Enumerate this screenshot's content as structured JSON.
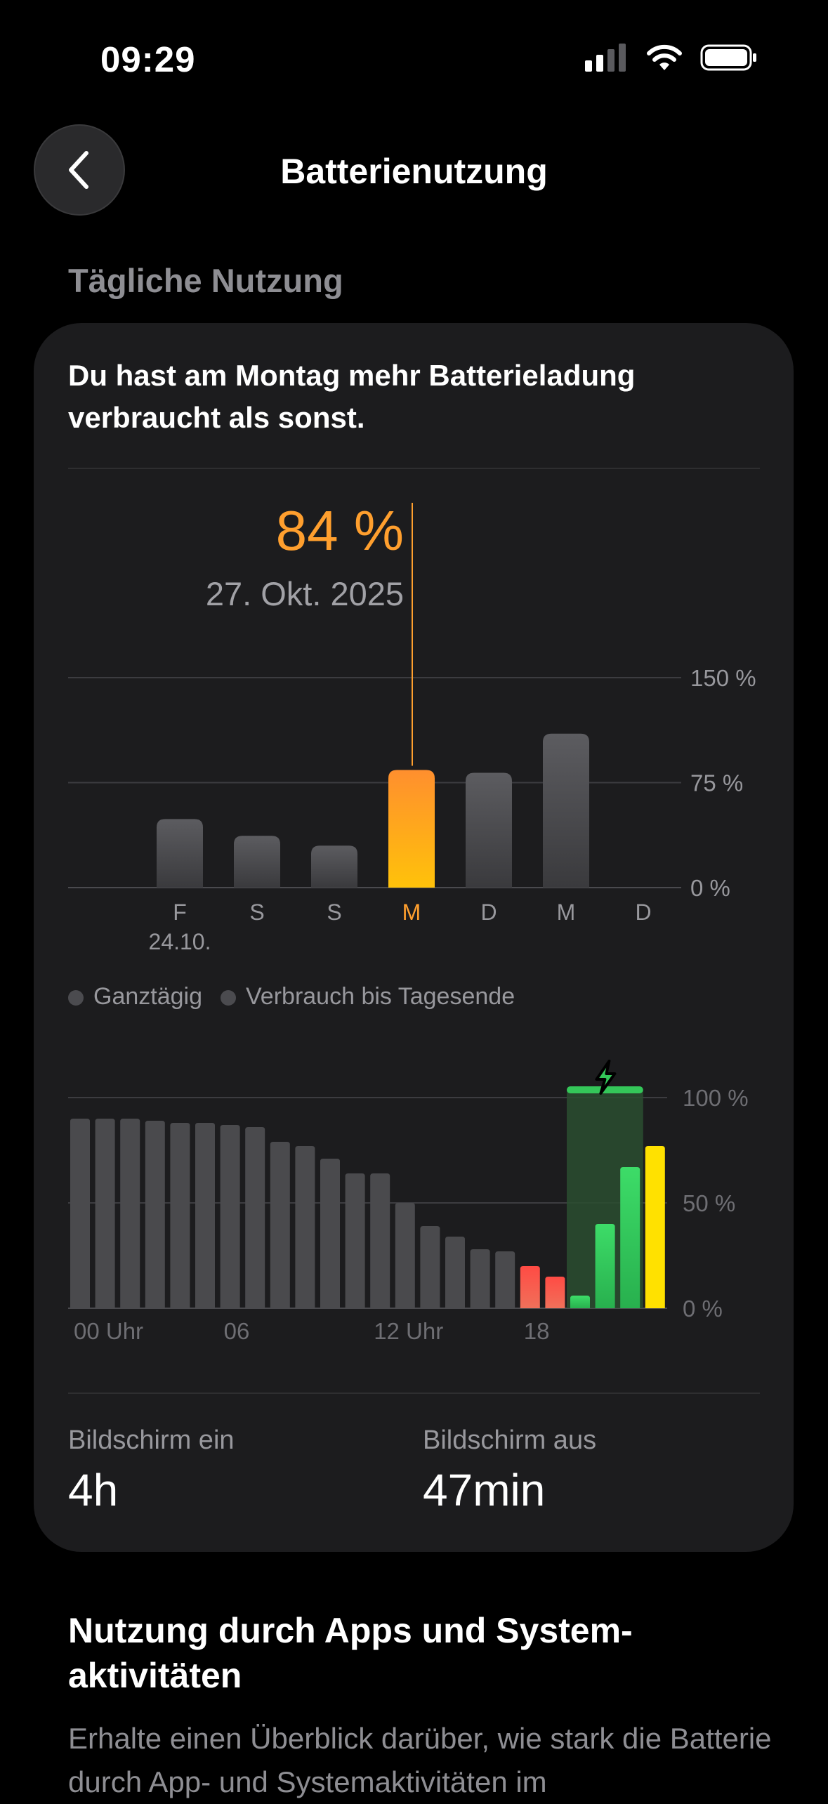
{
  "status_bar": {
    "time": "09:29"
  },
  "header": {
    "title": "Batterienutzung"
  },
  "section_label": "Tägliche Nutzung",
  "card": {
    "headline": "Du hast am Montag mehr Batterieladung verbraucht als sonst.",
    "selected": {
      "value": "84 %",
      "date": "27. Okt. 2025"
    },
    "legend": [
      "Ganztägig",
      "Verbrauch bis Tagesende"
    ],
    "screen_on": {
      "label": "Bildschirm ein",
      "value": "4h"
    },
    "screen_off": {
      "label": "Bildschirm aus",
      "value": "47min"
    }
  },
  "apps_section": {
    "title": "Nutzung durch Apps und System-aktivitäten",
    "description": "Erhalte einen Überblick darüber, wie stark die Batterie durch App- und Systemaktivitäten im"
  },
  "colors": {
    "accent_orange": "#ff9f2e",
    "bar_gray": "#4a4a4d",
    "charge_green": "#34c759",
    "low_red": "#ff5a52",
    "current_yellow": "#ffe100"
  },
  "chart_data": [
    {
      "type": "bar",
      "title": "",
      "categories": [
        "F",
        "S",
        "S",
        "M",
        "D",
        "M",
        "D"
      ],
      "sublabels": [
        "24.10.",
        "",
        "",
        "",
        "",
        "",
        ""
      ],
      "values": [
        49,
        37,
        30,
        84,
        82,
        110,
        null
      ],
      "highlighted_index": 3,
      "y_ticks": [
        "0 %",
        "75 %",
        "150 %"
      ],
      "ylim": [
        0,
        150
      ],
      "grid": true
    },
    {
      "type": "bar",
      "title": "",
      "x_ticks": [
        "00 Uhr",
        "06",
        "12 Uhr",
        "18"
      ],
      "y_ticks": [
        "0 %",
        "50 %",
        "100 %"
      ],
      "ylim": [
        0,
        100
      ],
      "values": [
        90,
        90,
        90,
        89,
        88,
        88,
        87,
        86,
        79,
        77,
        71,
        64,
        64,
        50,
        39,
        34,
        28,
        27,
        20,
        15,
        6,
        40,
        67,
        77
      ],
      "bar_status": [
        "normal",
        "normal",
        "normal",
        "normal",
        "normal",
        "normal",
        "normal",
        "normal",
        "normal",
        "normal",
        "normal",
        "normal",
        "normal",
        "normal",
        "normal",
        "normal",
        "normal",
        "normal",
        "low",
        "low",
        "charging",
        "charging",
        "charging",
        "current"
      ],
      "charging_window_hours": [
        20,
        22
      ],
      "grid": true
    }
  ]
}
